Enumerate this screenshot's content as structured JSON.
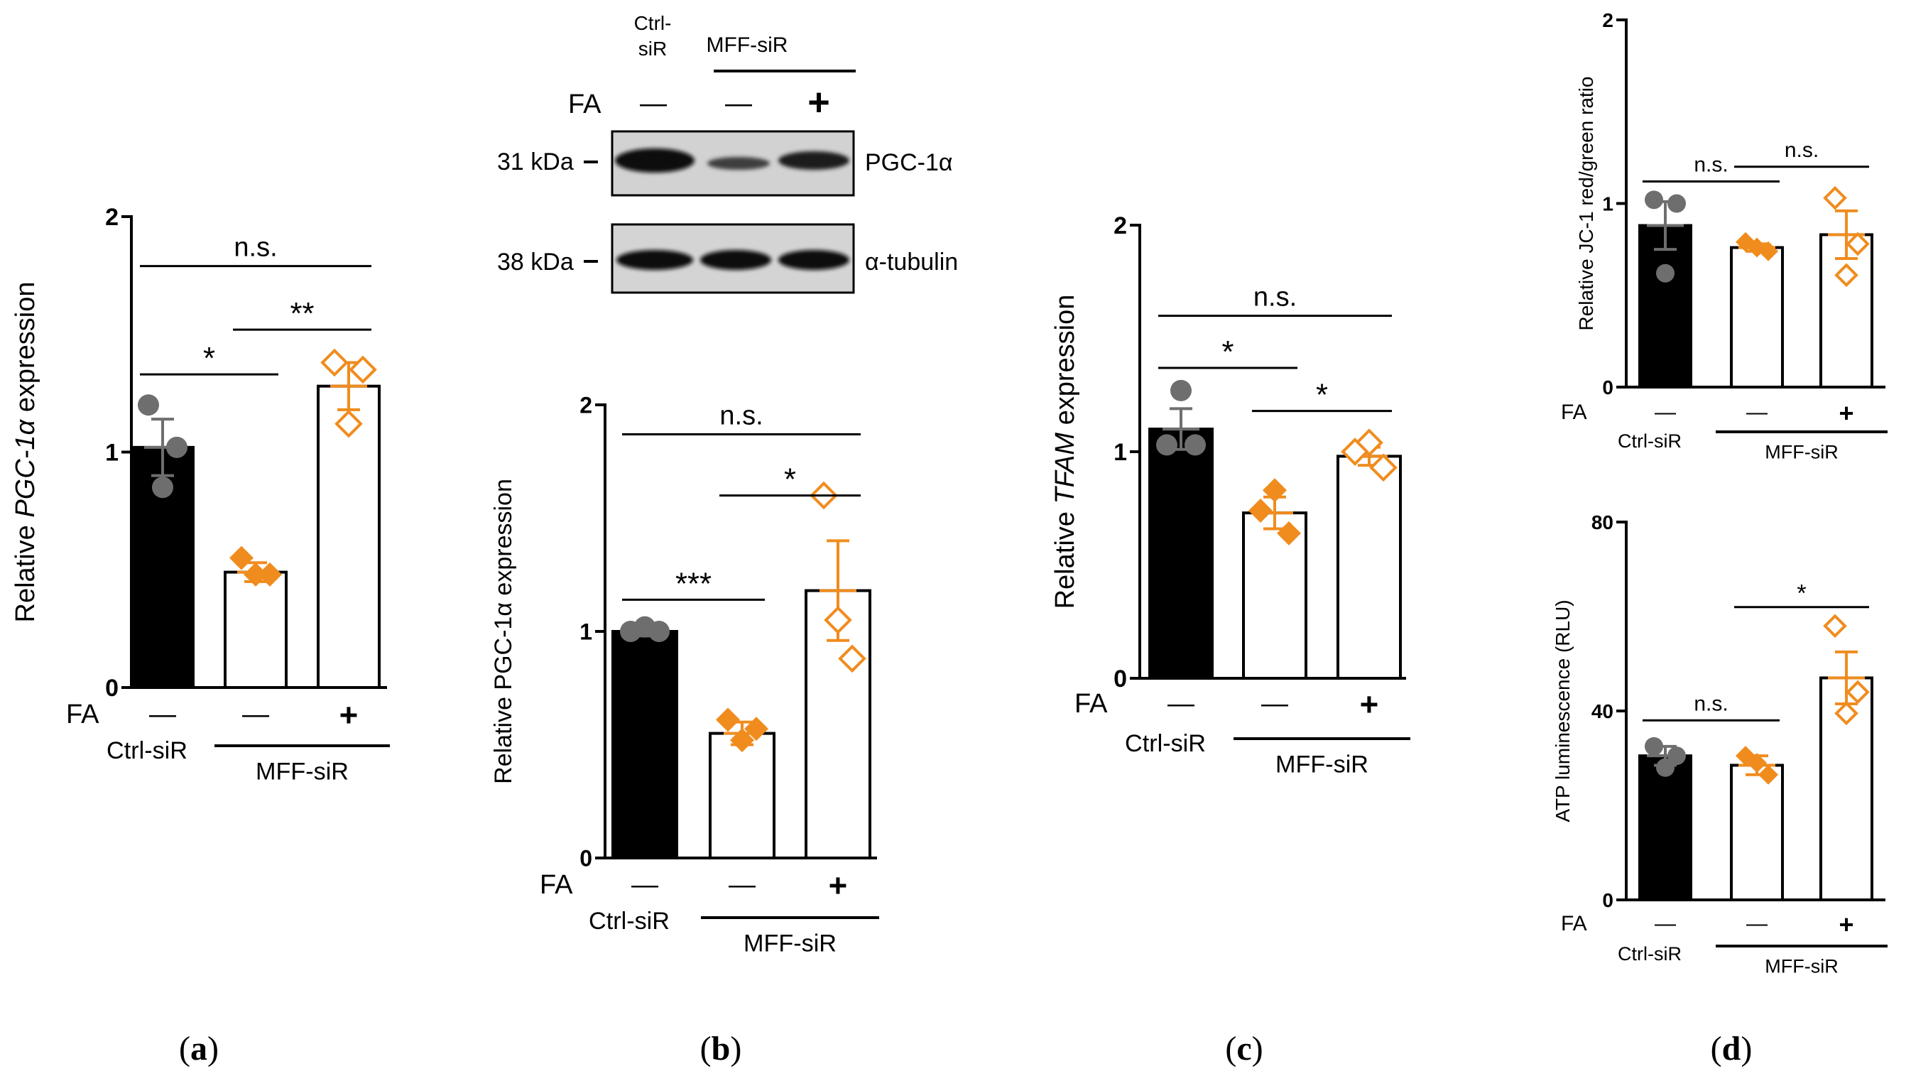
{
  "colors": {
    "black": "#000000",
    "orange": "#f08c1e",
    "grey": "#6e6e6e"
  },
  "chart_data": [
    {
      "id": "a",
      "type": "bar",
      "panel_label": "a",
      "ylabel_pre": "Relative ",
      "ylabel_italic": "PGC-1α",
      "ylabel_post": " expression",
      "ylim": [
        0,
        2
      ],
      "yticks": [
        "0",
        "1",
        "2"
      ],
      "fa_label": "FA",
      "fa_signs": [
        "—",
        "—",
        "+"
      ],
      "group_ctrl": "Ctrl-siR",
      "group_mff": "MFF-siR",
      "bars": [
        {
          "mean": 1.02,
          "sem": 0.12,
          "points": [
            1.2,
            1.02,
            0.85
          ],
          "style": "black",
          "marker": "circle"
        },
        {
          "mean": 0.49,
          "sem": 0.04,
          "points": [
            0.55,
            0.48,
            0.48
          ],
          "style": "white",
          "marker": "diamond"
        },
        {
          "mean": 1.28,
          "sem": 0.1,
          "points": [
            1.38,
            1.35,
            1.12
          ],
          "style": "white",
          "marker": "odiamond"
        }
      ],
      "brackets": [
        {
          "from": 0,
          "to": 1,
          "y": 1.33,
          "text": "*"
        },
        {
          "from": 1,
          "to": 2,
          "y": 1.52,
          "text": "**"
        },
        {
          "from": 0,
          "to": 2,
          "y": 1.79,
          "text": "n.s."
        }
      ]
    },
    {
      "id": "b",
      "type": "bar",
      "panel_label": "b",
      "ylabel_pre": "Relative PGC-1α expression",
      "ylabel_italic": "",
      "ylabel_post": "",
      "ylim": [
        0,
        2
      ],
      "yticks": [
        "0",
        "1",
        "2"
      ],
      "fa_label": "FA",
      "fa_signs": [
        "—",
        "—",
        "+"
      ],
      "group_ctrl": "Ctrl-siR",
      "group_mff": "MFF-siR",
      "bars": [
        {
          "mean": 1.0,
          "sem": 0.02,
          "points": [
            1.0,
            1.02,
            1.0
          ],
          "style": "black",
          "marker": "circle"
        },
        {
          "mean": 0.55,
          "sem": 0.05,
          "points": [
            0.61,
            0.52,
            0.57
          ],
          "style": "white",
          "marker": "diamond"
        },
        {
          "mean": 1.18,
          "sem": 0.22,
          "points": [
            1.6,
            1.05,
            0.88
          ],
          "style": "white",
          "marker": "odiamond"
        }
      ],
      "brackets": [
        {
          "from": 0,
          "to": 1,
          "y": 1.14,
          "text": "***"
        },
        {
          "from": 1,
          "to": 2,
          "y": 1.6,
          "text": "*"
        },
        {
          "from": 0,
          "to": 2,
          "y": 1.87,
          "text": "n.s."
        }
      ]
    },
    {
      "id": "c",
      "type": "bar",
      "panel_label": "c",
      "ylabel_pre": "Relative ",
      "ylabel_italic": "TFAM",
      "ylabel_post": " expression",
      "ylim": [
        0,
        2
      ],
      "yticks": [
        "0",
        "1",
        "2"
      ],
      "fa_label": "FA",
      "fa_signs": [
        "—",
        "—",
        "+"
      ],
      "group_ctrl": "Ctrl-siR",
      "group_mff": "MFF-siR",
      "bars": [
        {
          "mean": 1.1,
          "sem": 0.09,
          "points": [
            1.27,
            1.03,
            1.03
          ],
          "style": "black",
          "marker": "circle"
        },
        {
          "mean": 0.73,
          "sem": 0.07,
          "points": [
            0.83,
            0.74,
            0.64
          ],
          "style": "white",
          "marker": "diamond"
        },
        {
          "mean": 0.98,
          "sem": 0.04,
          "points": [
            1.04,
            1.0,
            0.93
          ],
          "style": "white",
          "marker": "odiamond"
        }
      ],
      "brackets": [
        {
          "from": 0,
          "to": 1,
          "y": 1.37,
          "text": "*"
        },
        {
          "from": 1,
          "to": 2,
          "y": 1.18,
          "text": "*"
        },
        {
          "from": 0,
          "to": 2,
          "y": 1.6,
          "text": "n.s."
        }
      ]
    },
    {
      "id": "d1",
      "type": "bar",
      "panel_label": "d",
      "ylabel_pre": "Relative  JC-1 red/green ratio",
      "ylabel_italic": "",
      "ylabel_post": "",
      "ylim": [
        0,
        2
      ],
      "yticks": [
        "0",
        "1",
        "2"
      ],
      "fa_label": "FA",
      "fa_signs": [
        "—",
        "—",
        "+"
      ],
      "group_ctrl": "Ctrl-siR",
      "group_mff": "MFF-siR",
      "bars": [
        {
          "mean": 0.88,
          "sem": 0.13,
          "points": [
            1.02,
            1.0,
            0.62
          ],
          "style": "black",
          "marker": "circle"
        },
        {
          "mean": 0.76,
          "sem": 0.02,
          "points": [
            0.79,
            0.74,
            0.76
          ],
          "style": "white",
          "marker": "diamond"
        },
        {
          "mean": 0.83,
          "sem": 0.13,
          "points": [
            1.03,
            0.78,
            0.61
          ],
          "style": "white",
          "marker": "odiamond"
        }
      ],
      "brackets": [
        {
          "from": 0,
          "to": 1,
          "y": 1.12,
          "text": "n.s."
        },
        {
          "from": 1,
          "to": 2,
          "y": 1.2,
          "text": "n.s."
        }
      ]
    },
    {
      "id": "d2",
      "type": "bar",
      "panel_label": "",
      "ylabel_pre": "ATP luminescence (RLU)",
      "ylabel_italic": "",
      "ylabel_post": "",
      "ylim": [
        0,
        80
      ],
      "yticks": [
        "0",
        "40",
        "80"
      ],
      "fa_label": "FA",
      "fa_signs": [
        "—",
        "—",
        "+"
      ],
      "group_ctrl": "Ctrl-siR",
      "group_mff": "MFF-siR",
      "bars": [
        {
          "mean": 30.5,
          "sem": 2.0,
          "points": [
            32.5,
            30.5,
            28.0
          ],
          "style": "black",
          "marker": "circle"
        },
        {
          "mean": 28.5,
          "sem": 2.0,
          "points": [
            30.5,
            26.5,
            29.0
          ],
          "style": "white",
          "marker": "diamond"
        },
        {
          "mean": 47.0,
          "sem": 5.5,
          "points": [
            58.0,
            44.0,
            39.5
          ],
          "style": "white",
          "marker": "odiamond"
        }
      ],
      "brackets": [
        {
          "from": 0,
          "to": 1,
          "y": 38.0,
          "text": "n.s."
        },
        {
          "from": 1,
          "to": 2,
          "y": 62.0,
          "text": "*"
        }
      ]
    }
  ],
  "blot": {
    "header_ctrl": "Ctrl-\nsiR",
    "header_mff": "MFF-siR",
    "fa_label": "FA",
    "fa_signs": [
      "—",
      "—",
      "+"
    ],
    "rows": [
      {
        "kda": "31 kDa",
        "protein": "PGC-1α"
      },
      {
        "kda": "38 kDa",
        "protein": "α-tubulin"
      }
    ]
  }
}
